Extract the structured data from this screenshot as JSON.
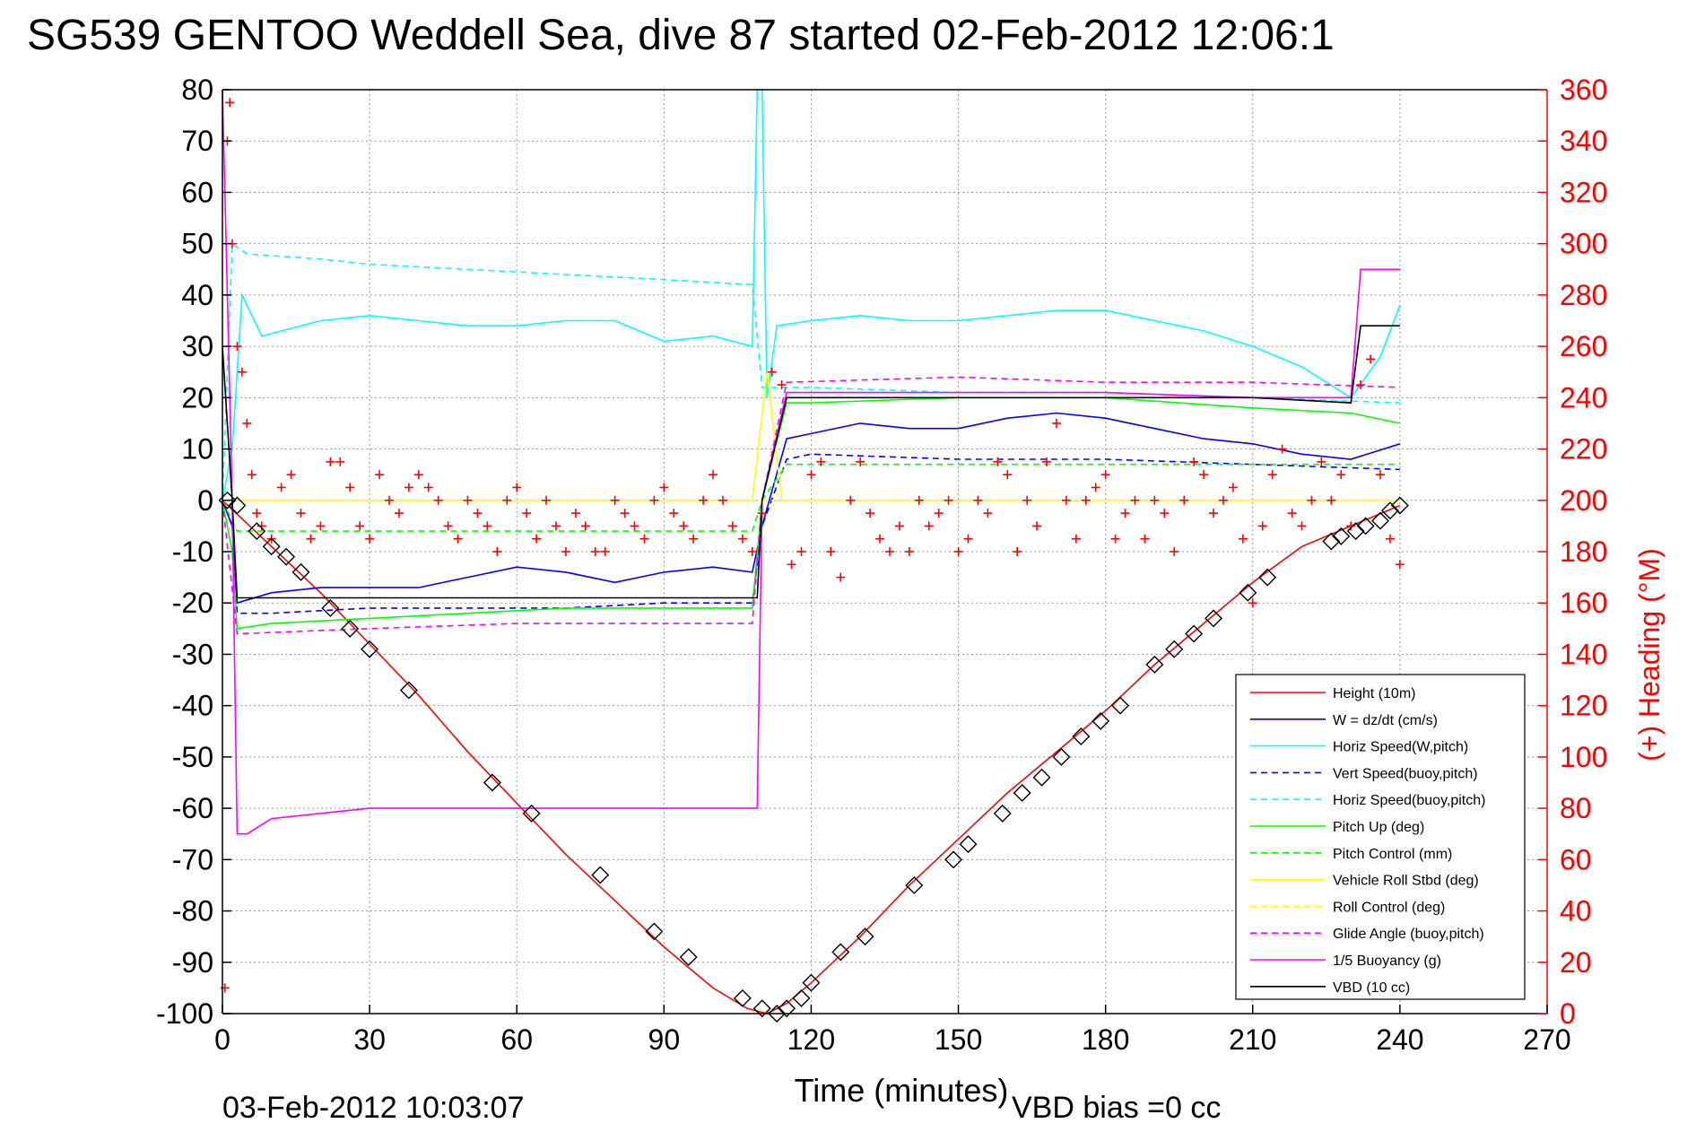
{
  "chart_data": {
    "type": "line",
    "title": "SG539 GENTOO Weddell Sea, dive 87 started 02-Feb-2012 12:06:1",
    "xlabel": "Time (minutes)",
    "ylabel_right": "(+) Heading (°M)",
    "xlim": [
      0,
      270
    ],
    "ylim": [
      -100,
      80
    ],
    "ylim_right": [
      0,
      360
    ],
    "xticks": [
      0,
      30,
      60,
      90,
      120,
      150,
      180,
      210,
      240,
      270
    ],
    "yticks": [
      -100,
      -90,
      -80,
      -70,
      -60,
      -50,
      -40,
      -30,
      -20,
      -10,
      0,
      10,
      20,
      30,
      40,
      50,
      60,
      70,
      80
    ],
    "yticks_right": [
      0,
      20,
      40,
      60,
      80,
      100,
      120,
      140,
      160,
      180,
      200,
      220,
      240,
      260,
      280,
      300,
      320,
      340,
      360
    ],
    "grid": true,
    "legend_position": "bottom-right",
    "footer_left": "03-Feb-2012 10:03:07",
    "footer_right": "VBD bias =0 cc",
    "colors": {
      "red": "#ff0000",
      "blue": "#0000ff",
      "cyan": "#00ffff",
      "green": "#00ff00",
      "yellow": "#ffff00",
      "magenta": "#ff00ff",
      "black": "#000000"
    },
    "series": [
      {
        "name": "Height (10m)",
        "color": "#ff0000",
        "style": "solid",
        "x": [
          0,
          10,
          20,
          30,
          40,
          50,
          60,
          70,
          80,
          90,
          100,
          107,
          111,
          115,
          120,
          130,
          140,
          150,
          160,
          170,
          180,
          190,
          200,
          210,
          220,
          230,
          240
        ],
        "y": [
          0,
          -9,
          -18,
          -28,
          -38,
          -49,
          -59,
          -69,
          -78,
          -87,
          -95,
          -99,
          -100,
          -98,
          -94,
          -85,
          -75,
          -66,
          -57,
          -49,
          -41,
          -32,
          -24,
          -16,
          -9,
          -5,
          -1
        ]
      },
      {
        "name": "W = dz/dt (cm/s)",
        "color": "#0000ff",
        "style": "solid",
        "x": [
          0,
          2,
          3,
          10,
          20,
          30,
          40,
          50,
          60,
          70,
          80,
          90,
          100,
          108,
          110,
          115,
          120,
          130,
          140,
          150,
          160,
          170,
          180,
          190,
          200,
          210,
          220,
          230,
          240
        ],
        "y": [
          0,
          -5,
          -20,
          -18,
          -17,
          -17,
          -17,
          -15,
          -13,
          -14,
          -16,
          -14,
          -13,
          -14,
          -5,
          12,
          13,
          15,
          14,
          14,
          16,
          17,
          16,
          14,
          12,
          11,
          9,
          8,
          11
        ]
      },
      {
        "name": "Horiz Speed(W,pitch)",
        "color": "#00ffff",
        "style": "solid",
        "x": [
          0,
          2,
          4,
          8,
          20,
          30,
          40,
          50,
          60,
          70,
          80,
          90,
          100,
          108,
          109,
          110,
          111,
          113,
          120,
          130,
          140,
          150,
          160,
          170,
          180,
          190,
          200,
          210,
          220,
          230,
          236,
          240
        ],
        "y": [
          0,
          10,
          40,
          32,
          35,
          36,
          35,
          34,
          34,
          35,
          35,
          31,
          32,
          30,
          80,
          80,
          20,
          34,
          35,
          36,
          35,
          35,
          36,
          37,
          37,
          35,
          33,
          30,
          26,
          20,
          28,
          38
        ]
      },
      {
        "name": "Vert Speed(buoy,pitch)",
        "color": "#0000ff",
        "style": "dashed",
        "x": [
          0,
          2,
          3,
          10,
          30,
          50,
          70,
          90,
          108,
          110,
          115,
          120,
          150,
          180,
          210,
          240
        ],
        "y": [
          0,
          -5,
          -22,
          -22,
          -21,
          -21,
          -21,
          -20,
          -20,
          -5,
          8,
          9,
          8,
          8,
          7,
          6
        ]
      },
      {
        "name": "Horiz Speed(buoy,pitch)",
        "color": "#00ffff",
        "style": "dashed",
        "x": [
          0,
          2,
          5,
          20,
          30,
          50,
          70,
          90,
          108,
          110,
          115,
          120,
          150,
          180,
          210,
          240
        ],
        "y": [
          0,
          50,
          48,
          47,
          46,
          45,
          44,
          43,
          42,
          22,
          22,
          22,
          21,
          21,
          20,
          19
        ]
      },
      {
        "name": "Pitch Up (deg)",
        "color": "#00ff00",
        "style": "solid",
        "x": [
          0,
          2,
          3,
          10,
          30,
          50,
          70,
          90,
          108,
          110,
          115,
          120,
          150,
          180,
          210,
          230,
          240
        ],
        "y": [
          0,
          -10,
          -25,
          -24,
          -23,
          -22,
          -21,
          -21,
          -21,
          0,
          19,
          19,
          20,
          20,
          18,
          17,
          15
        ]
      },
      {
        "name": "Pitch Control (mm)",
        "color": "#00ff00",
        "style": "dashed",
        "x": [
          0,
          3,
          30,
          60,
          90,
          108,
          110,
          115,
          150,
          180,
          210,
          240
        ],
        "y": [
          0,
          -6,
          -6,
          -6,
          -6,
          -6,
          0,
          7,
          7,
          7,
          7,
          7
        ]
      },
      {
        "name": "Vehicle Roll Stbd (deg)",
        "color": "#ffff00",
        "style": "solid",
        "x": [
          0,
          30,
          60,
          90,
          108,
          111,
          114,
          120,
          150,
          180,
          210,
          240
        ],
        "y": [
          0,
          0,
          0,
          0,
          0,
          25,
          0,
          0,
          0,
          0,
          0,
          0
        ]
      },
      {
        "name": "Roll Control (deg)",
        "color": "#ffff00",
        "style": "dashed",
        "x": [
          0,
          30,
          60,
          90,
          120,
          150,
          180,
          210,
          240
        ],
        "y": [
          0,
          0,
          0,
          0,
          0,
          0,
          0,
          0,
          0
        ]
      },
      {
        "name": "Glide Angle (buoy,pitch)",
        "color": "#ff00ff",
        "style": "dashed",
        "x": [
          0,
          3,
          30,
          60,
          90,
          108,
          110,
          115,
          150,
          180,
          210,
          240
        ],
        "y": [
          0,
          -26,
          -25,
          -24,
          -24,
          -24,
          0,
          23,
          24,
          23,
          23,
          22
        ]
      },
      {
        "name": "1/5 Buoyancy (g)",
        "color": "#ff00ff",
        "style": "solid",
        "x": [
          0,
          1,
          2,
          3,
          5,
          10,
          20,
          30,
          60,
          90,
          109,
          110,
          115,
          120,
          150,
          180,
          210,
          230,
          232,
          240
        ],
        "y": [
          80,
          40,
          0,
          -65,
          -65,
          -62,
          -61,
          -60,
          -60,
          -60,
          -60,
          0,
          21,
          21,
          21,
          21,
          20,
          20,
          45,
          45
        ]
      },
      {
        "name": "VBD (10 cc)",
        "color": "#000000",
        "style": "solid",
        "x": [
          0,
          2,
          3,
          10,
          30,
          60,
          90,
          109,
          110,
          115,
          120,
          150,
          180,
          210,
          230,
          232,
          240
        ],
        "y": [
          30,
          0,
          -19,
          -19,
          -19,
          -19,
          -19,
          -19,
          0,
          20,
          20,
          20,
          20,
          20,
          19,
          34,
          34
        ]
      }
    ],
    "heading": {
      "name": "(+) Heading",
      "axis": "right",
      "color": "#ff0000",
      "marker": "+",
      "x": [
        0.5,
        1,
        1.5,
        2,
        3,
        4,
        5,
        6,
        7,
        8,
        10,
        12,
        14,
        16,
        18,
        20,
        22,
        24,
        26,
        28,
        30,
        32,
        34,
        36,
        38,
        40,
        42,
        44,
        46,
        48,
        50,
        52,
        54,
        56,
        58,
        60,
        62,
        64,
        66,
        68,
        70,
        72,
        74,
        76,
        78,
        80,
        82,
        84,
        86,
        88,
        90,
        92,
        94,
        96,
        98,
        100,
        102,
        104,
        106,
        108,
        110,
        112,
        114,
        116,
        118,
        120,
        122,
        124,
        126,
        128,
        130,
        132,
        134,
        136,
        138,
        140,
        142,
        144,
        146,
        148,
        150,
        152,
        154,
        156,
        158,
        160,
        162,
        164,
        166,
        168,
        170,
        172,
        174,
        176,
        178,
        180,
        182,
        184,
        186,
        188,
        190,
        192,
        194,
        196,
        198,
        200,
        202,
        204,
        206,
        208,
        210,
        212,
        214,
        216,
        218,
        220,
        222,
        224,
        226,
        228,
        230,
        232,
        234,
        236,
        238,
        240
      ],
      "y": [
        10,
        340,
        355,
        300,
        260,
        250,
        230,
        210,
        195,
        190,
        185,
        205,
        210,
        195,
        185,
        190,
        215,
        215,
        205,
        190,
        185,
        210,
        200,
        195,
        205,
        210,
        205,
        200,
        190,
        185,
        200,
        195,
        190,
        180,
        200,
        205,
        195,
        185,
        200,
        190,
        180,
        195,
        190,
        180,
        180,
        200,
        195,
        190,
        185,
        200,
        205,
        195,
        190,
        185,
        200,
        210,
        200,
        190,
        185,
        180,
        195,
        250,
        245,
        175,
        180,
        210,
        215,
        180,
        170,
        200,
        215,
        195,
        185,
        180,
        190,
        180,
        200,
        190,
        195,
        200,
        180,
        185,
        200,
        195,
        215,
        210,
        180,
        200,
        190,
        215,
        230,
        200,
        185,
        200,
        205,
        210,
        185,
        195,
        200,
        185,
        200,
        195,
        180,
        200,
        215,
        210,
        195,
        200,
        205,
        185,
        160,
        190,
        210,
        220,
        195,
        190,
        200,
        215,
        200,
        210,
        190,
        245,
        255,
        210,
        185,
        175
      ]
    },
    "waypoints": {
      "marker": "diamond",
      "color": "#000000",
      "x": [
        1,
        3,
        7,
        10,
        13,
        16,
        22,
        26,
        30,
        38,
        55,
        63,
        77,
        88,
        95,
        106,
        110,
        113,
        115,
        118,
        120,
        126,
        131,
        141,
        149,
        152,
        159,
        163,
        167,
        171,
        175,
        179,
        183,
        190,
        194,
        198,
        202,
        209,
        213,
        226,
        228,
        231,
        233,
        236,
        238,
        240
      ],
      "y": [
        0,
        -1,
        -6,
        -9,
        -11,
        -14,
        -21,
        -25,
        -29,
        -37,
        -55,
        -61,
        -73,
        -84,
        -89,
        -97,
        -99,
        -100,
        -99,
        -97,
        -94,
        -88,
        -85,
        -75,
        -70,
        -67,
        -61,
        -57,
        -54,
        -50,
        -46,
        -43,
        -40,
        -32,
        -29,
        -26,
        -23,
        -18,
        -15,
        -8,
        -7,
        -6,
        -5,
        -4,
        -2,
        -1
      ]
    }
  }
}
